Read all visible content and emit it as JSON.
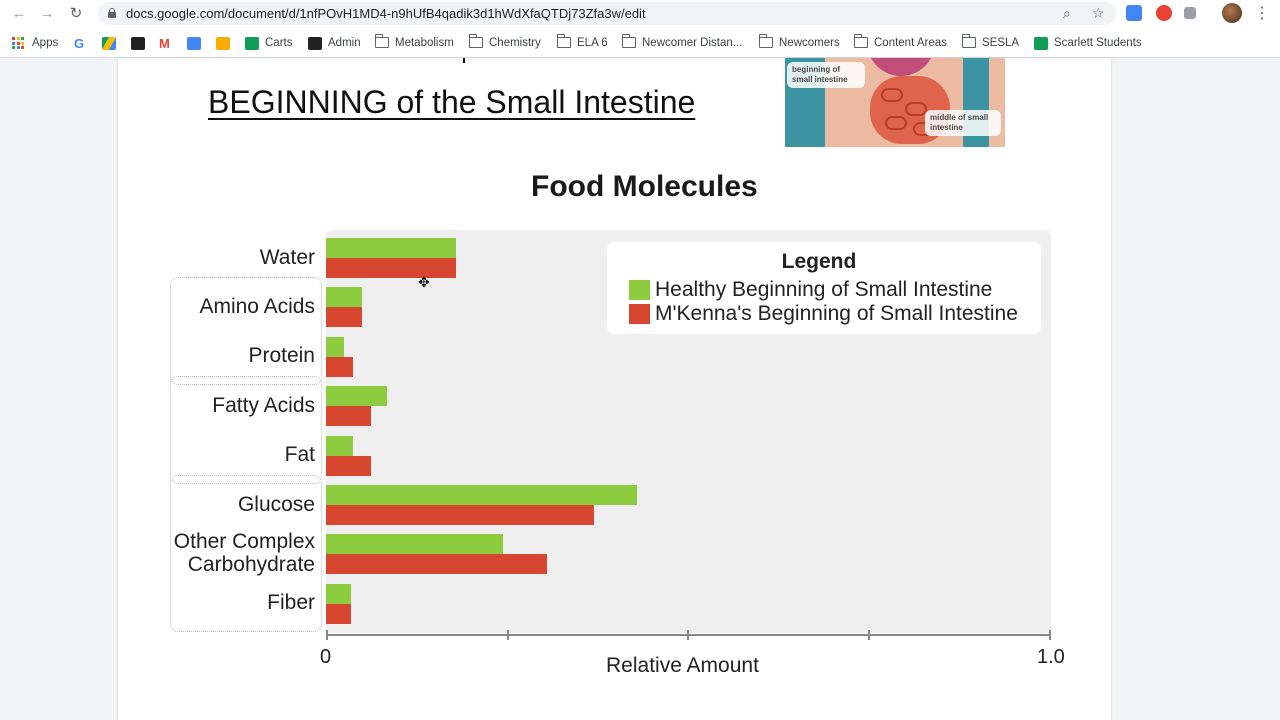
{
  "browser": {
    "url": "docs.google.com/document/d/1nfPOvH1MD4-n9hUfB4qadik3d1hWdXfaQTDj73Zfa3w/edit",
    "bookmarks": [
      {
        "label": "Apps",
        "icon": "apps-grid-icon"
      },
      {
        "label": "",
        "icon": "google-icon"
      },
      {
        "label": "",
        "icon": "drive-icon"
      },
      {
        "label": "",
        "icon": "pearson-icon"
      },
      {
        "label": "",
        "icon": "gmail-icon"
      },
      {
        "label": "",
        "icon": "calendar-icon"
      },
      {
        "label": "",
        "icon": "classroom-icon"
      },
      {
        "label": "Carts",
        "icon": "sheets-icon"
      },
      {
        "label": "Admin",
        "icon": "pearson-icon"
      },
      {
        "label": "Metabolism",
        "icon": "folder-icon"
      },
      {
        "label": "Chemistry",
        "icon": "folder-icon"
      },
      {
        "label": "ELA 6",
        "icon": "folder-icon"
      },
      {
        "label": "Newcomer Distan...",
        "icon": "folder-icon"
      },
      {
        "label": "Newcomers",
        "icon": "folder-icon"
      },
      {
        "label": "Content Areas",
        "icon": "folder-icon"
      },
      {
        "label": "SESLA",
        "icon": "folder-icon"
      },
      {
        "label": "Scarlett Students",
        "icon": "sheets-icon"
      }
    ]
  },
  "document": {
    "heading": "BEGINNING of the Small Intestine",
    "illustration": {
      "label_top": "beginning of small intestine",
      "label_middle": "middle of small intestine"
    }
  },
  "chart_data": {
    "type": "bar",
    "orientation": "horizontal",
    "title": "Food Molecules",
    "xlabel": "Relative Amount",
    "ylabel": "",
    "xlim": [
      0,
      1.0
    ],
    "x_tick_labels": [
      "0",
      "1.0"
    ],
    "categories": [
      "Water",
      "Amino Acids",
      "Protein",
      "Fatty Acids",
      "Fat",
      "Glucose",
      "Other Complex Carbohydrate",
      "Fiber"
    ],
    "category_lines": [
      [
        "Water"
      ],
      [
        "Amino Acids"
      ],
      [
        "Protein"
      ],
      [
        "Fatty Acids"
      ],
      [
        "Fat"
      ],
      [
        "Glucose"
      ],
      [
        "Other Complex",
        "Carbohydrate"
      ],
      [
        "Fiber"
      ]
    ],
    "groups": [
      [
        "Amino Acids",
        "Protein"
      ],
      [
        "Fatty Acids",
        "Fat"
      ],
      [
        "Glucose",
        "Other Complex Carbohydrate",
        "Fiber"
      ]
    ],
    "series": [
      {
        "name": "Healthy Beginning of Small Intestine",
        "color": "#8dcc3f",
        "values": [
          0.18,
          0.05,
          0.025,
          0.085,
          0.037,
          0.43,
          0.245,
          0.035
        ]
      },
      {
        "name": "M'Kenna's Beginning of Small Intestine",
        "color": "#d7472f",
        "values": [
          0.18,
          0.05,
          0.037,
          0.062,
          0.062,
          0.37,
          0.305,
          0.035
        ]
      }
    ],
    "legend": {
      "title": "Legend",
      "position": "top-right"
    }
  }
}
